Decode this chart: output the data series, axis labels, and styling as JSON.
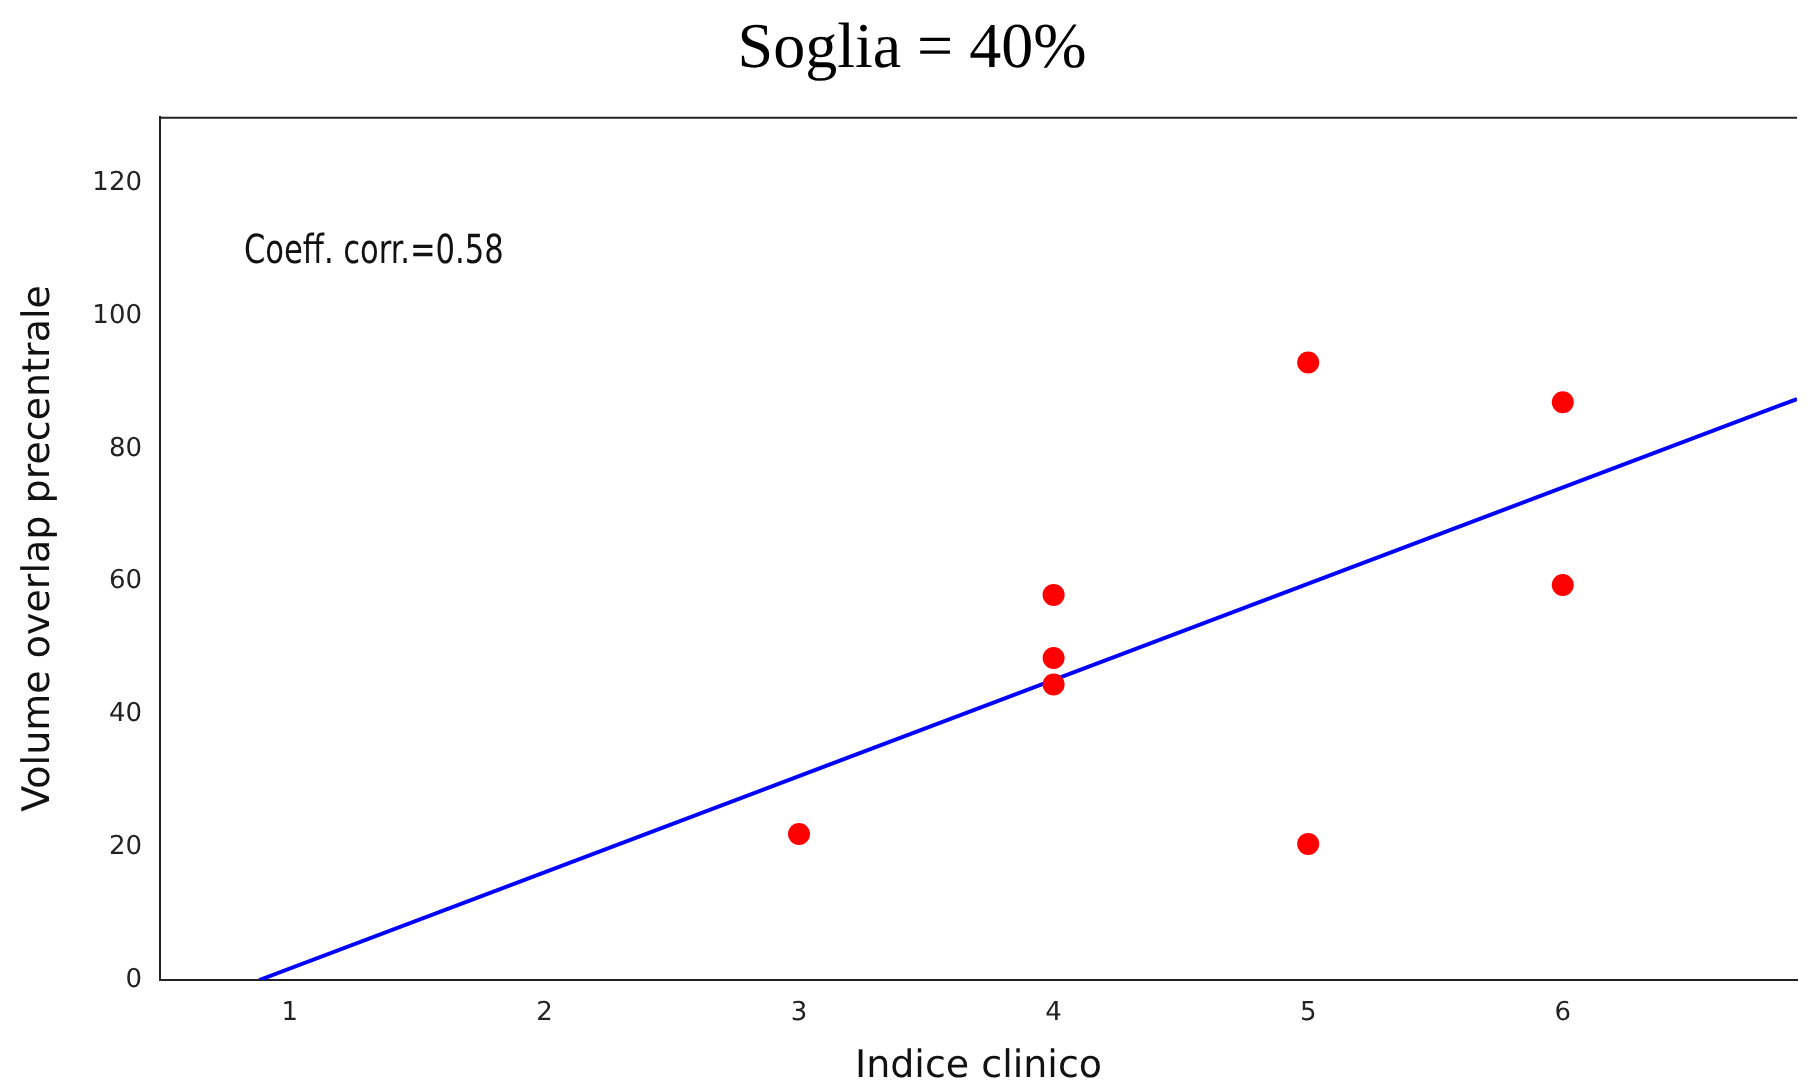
{
  "chart_data": {
    "type": "scatter",
    "title": "Soglia = 40%",
    "xlabel": "Indice clinico",
    "ylabel": "Volume overlap precentrale",
    "annotations": [
      "Coeff. corr.=0.58"
    ],
    "xlim": [
      0.49,
      6.92
    ],
    "xticks": [
      1,
      2,
      3,
      4,
      5,
      6
    ],
    "ylim": [
      0,
      130
    ],
    "yticks": [
      0,
      20,
      40,
      60,
      80,
      100,
      120
    ],
    "series": [
      {
        "color": "#ff0000",
        "marker": "circle",
        "x": [
          3,
          4,
          4,
          4,
          5,
          5,
          6,
          6
        ],
        "values": [
          22,
          58,
          48.5,
          44.5,
          93,
          20.5,
          87,
          59.5
        ]
      },
      {
        "type": "line",
        "color": "#0000ff",
        "marker": "none",
        "x": [
          0.88,
          6.92
        ],
        "values": [
          0,
          87.5
        ]
      }
    ]
  }
}
